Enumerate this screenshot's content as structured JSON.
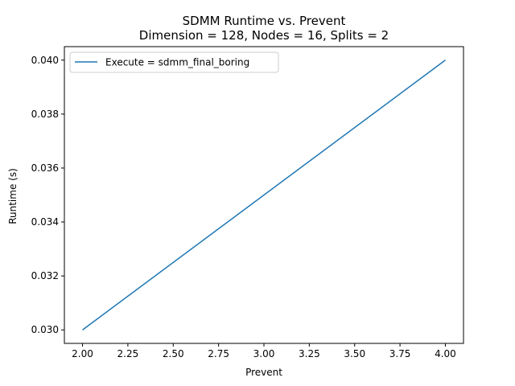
{
  "chart_data": {
    "type": "line",
    "title": "SDMM Runtime vs. Prevent",
    "subtitle": "Dimension = 128, Nodes = 16, Splits = 2",
    "xlabel": "Prevent",
    "ylabel": "Runtime (s)",
    "xlim": [
      1.9,
      4.1
    ],
    "ylim": [
      0.0295,
      0.0405
    ],
    "x_ticks": [
      "2.00",
      "2.25",
      "2.50",
      "2.75",
      "3.00",
      "3.25",
      "3.50",
      "3.75",
      "4.00"
    ],
    "y_ticks": [
      "0.030",
      "0.032",
      "0.034",
      "0.036",
      "0.038",
      "0.040"
    ],
    "grid": false,
    "legend_position": "upper left",
    "series": [
      {
        "name": "Execute = sdmm_final_boring",
        "color": "#1f77b4",
        "x": [
          2.0,
          4.0
        ],
        "y": [
          0.03,
          0.04
        ]
      }
    ]
  }
}
